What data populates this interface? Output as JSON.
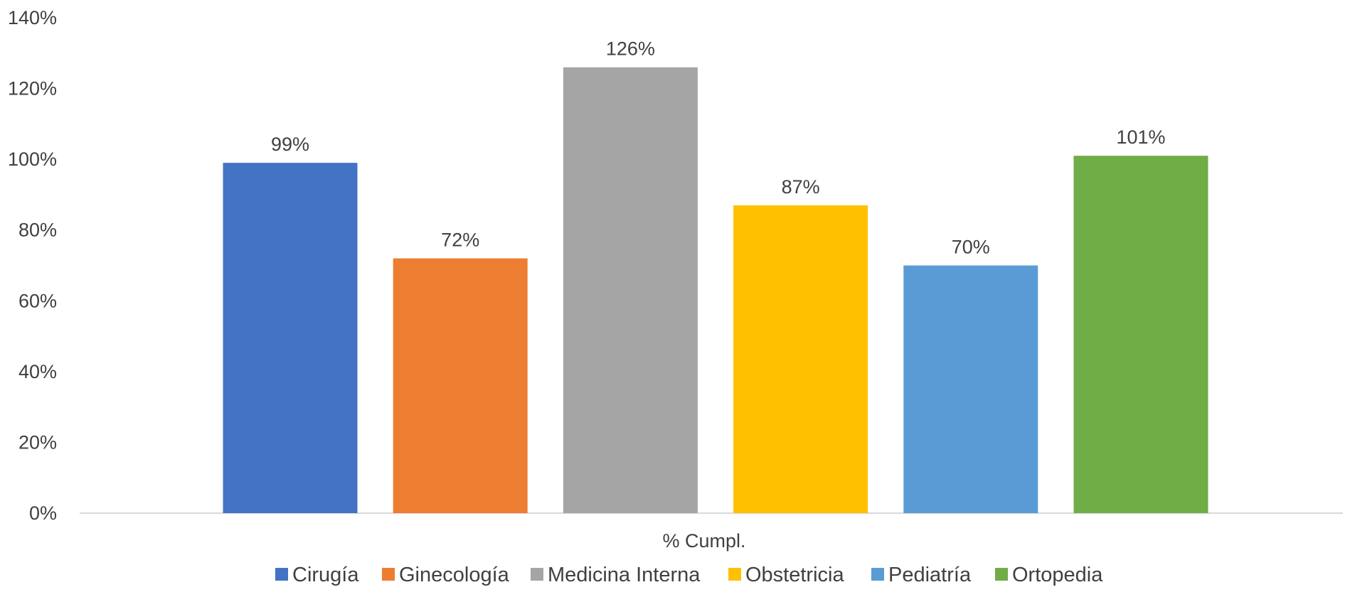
{
  "chart_data": {
    "type": "bar",
    "categories": [
      "% Cumpl."
    ],
    "series": [
      {
        "name": "Cirugía",
        "values": [
          99
        ],
        "label": "99%",
        "color": "#4472C4"
      },
      {
        "name": "Ginecología",
        "values": [
          72
        ],
        "label": "72%",
        "color": "#ED7D31"
      },
      {
        "name": "Medicina Interna",
        "values": [
          126
        ],
        "label": "126%",
        "color": "#A5A5A5"
      },
      {
        "name": "Obstetricia",
        "values": [
          87
        ],
        "label": "87%",
        "color": "#FFC000"
      },
      {
        "name": "Pediatría",
        "values": [
          70
        ],
        "label": "70%",
        "color": "#5B9BD5"
      },
      {
        "name": "Ortopedia",
        "values": [
          101
        ],
        "label": "101%",
        "color": "#70AD47"
      }
    ],
    "y_ticks": [
      "0%",
      "20%",
      "40%",
      "60%",
      "80%",
      "100%",
      "120%",
      "140%"
    ],
    "ylim": [
      0,
      140
    ],
    "grid": false,
    "legend_position": "bottom",
    "title": "",
    "xlabel": "",
    "ylabel": ""
  }
}
